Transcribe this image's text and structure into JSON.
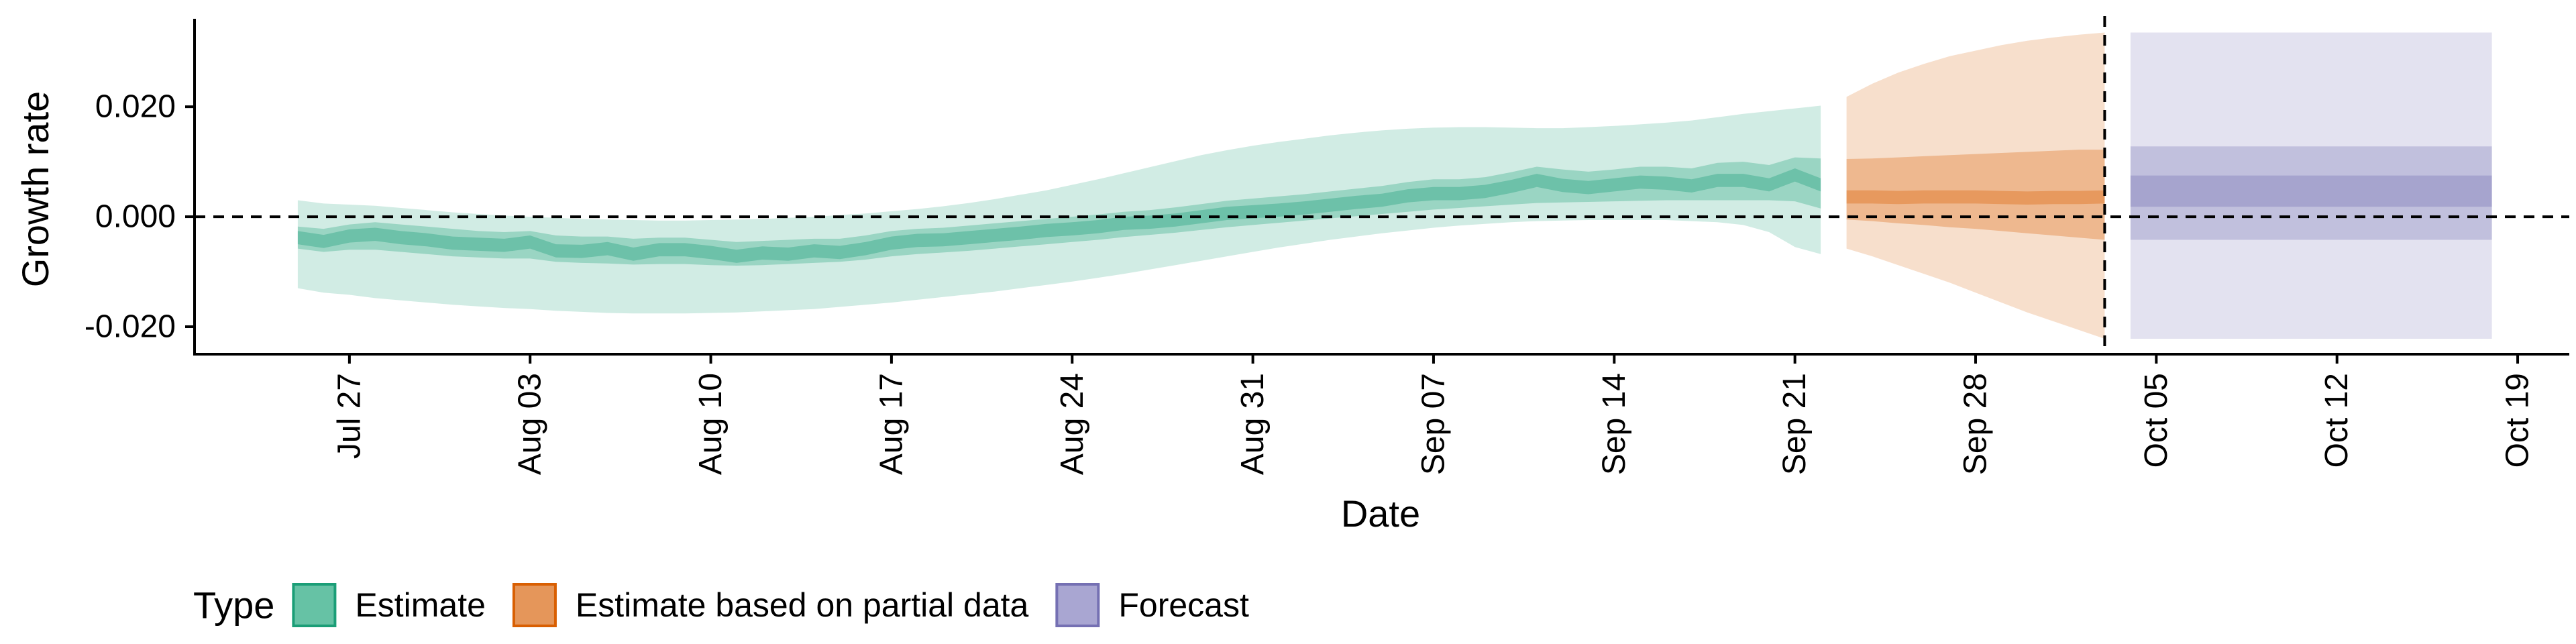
{
  "chart_data": {
    "type": "area",
    "xlabel": "Date",
    "ylabel": "Growth rate",
    "x_range": [
      "2020-07-21",
      "2020-10-21"
    ],
    "ylim": [
      -0.025,
      0.036
    ],
    "grid": false,
    "legend_position": "bottom-left",
    "reference_lines": {
      "horizontal_y": 0.0,
      "vertical_date": "2020-10-03"
    },
    "x_ticks": [
      {
        "date": "2020-07-27",
        "label": "Jul 27"
      },
      {
        "date": "2020-08-03",
        "label": "Aug 03"
      },
      {
        "date": "2020-08-10",
        "label": "Aug 10"
      },
      {
        "date": "2020-08-17",
        "label": "Aug 17"
      },
      {
        "date": "2020-08-24",
        "label": "Aug 24"
      },
      {
        "date": "2020-08-31",
        "label": "Aug 31"
      },
      {
        "date": "2020-09-07",
        "label": "Sep 07"
      },
      {
        "date": "2020-09-14",
        "label": "Sep 14"
      },
      {
        "date": "2020-09-21",
        "label": "Sep 21"
      },
      {
        "date": "2020-09-28",
        "label": "Sep 28"
      },
      {
        "date": "2020-10-05",
        "label": "Oct 05"
      },
      {
        "date": "2020-10-12",
        "label": "Oct 12"
      },
      {
        "date": "2020-10-19",
        "label": "Oct 19"
      }
    ],
    "y_ticks": [
      {
        "value": 0.02,
        "label": "0.020"
      },
      {
        "value": 0.0,
        "label": "0.000"
      },
      {
        "value": -0.02,
        "label": "-0.020"
      }
    ],
    "legend": {
      "title": "Type",
      "items": [
        {
          "label": "Estimate",
          "fill": "#66C2A5",
          "stroke": "#1B9E77"
        },
        {
          "label": "Estimate based on partial data",
          "fill": "#E5965A",
          "stroke": "#D95F02"
        },
        {
          "label": "Forecast",
          "fill": "#A9A6D2",
          "stroke": "#7570B3"
        }
      ]
    },
    "series": [
      {
        "name": "Estimate",
        "color": "#1B9E77",
        "x": [
          "2020-07-25",
          "2020-07-26",
          "2020-07-27",
          "2020-07-28",
          "2020-07-29",
          "2020-07-30",
          "2020-07-31",
          "2020-08-01",
          "2020-08-02",
          "2020-08-03",
          "2020-08-04",
          "2020-08-05",
          "2020-08-06",
          "2020-08-07",
          "2020-08-08",
          "2020-08-09",
          "2020-08-10",
          "2020-08-11",
          "2020-08-12",
          "2020-08-13",
          "2020-08-14",
          "2020-08-15",
          "2020-08-16",
          "2020-08-17",
          "2020-08-18",
          "2020-08-19",
          "2020-08-20",
          "2020-08-21",
          "2020-08-22",
          "2020-08-23",
          "2020-08-24",
          "2020-08-25",
          "2020-08-26",
          "2020-08-27",
          "2020-08-28",
          "2020-08-29",
          "2020-08-30",
          "2020-08-31",
          "2020-09-01",
          "2020-09-02",
          "2020-09-03",
          "2020-09-04",
          "2020-09-05",
          "2020-09-06",
          "2020-09-07",
          "2020-09-08",
          "2020-09-09",
          "2020-09-10",
          "2020-09-11",
          "2020-09-12",
          "2020-09-13",
          "2020-09-14",
          "2020-09-15",
          "2020-09-16",
          "2020-09-17",
          "2020-09-18",
          "2020-09-19",
          "2020-09-20",
          "2020-09-21",
          "2020-09-22"
        ],
        "median": [
          -0.0038,
          -0.0045,
          -0.0035,
          -0.0032,
          -0.0038,
          -0.0042,
          -0.0048,
          -0.005,
          -0.0052,
          -0.0046,
          -0.0062,
          -0.0063,
          -0.0058,
          -0.0068,
          -0.006,
          -0.006,
          -0.0065,
          -0.0072,
          -0.0066,
          -0.0068,
          -0.0062,
          -0.0065,
          -0.0058,
          -0.0048,
          -0.0043,
          -0.0042,
          -0.0038,
          -0.0034,
          -0.003,
          -0.0025,
          -0.0022,
          -0.0018,
          -0.0012,
          -0.001,
          -0.0006,
          0.0,
          0.0006,
          0.0009,
          0.0012,
          0.0016,
          0.0021,
          0.0026,
          0.003,
          0.0038,
          0.0042,
          0.0042,
          0.0046,
          0.0055,
          0.0066,
          0.0057,
          0.0053,
          0.0058,
          0.0063,
          0.0061,
          0.0056,
          0.0066,
          0.0066,
          0.0058,
          0.0076,
          0.0058
        ],
        "lower_50": [
          -0.0058,
          -0.0064,
          -0.006,
          -0.006,
          -0.0064,
          -0.0068,
          -0.0072,
          -0.0074,
          -0.0076,
          -0.0076,
          -0.0082,
          -0.0084,
          -0.0085,
          -0.0087,
          -0.0086,
          -0.0086,
          -0.0088,
          -0.0089,
          -0.0088,
          -0.0086,
          -0.0084,
          -0.0082,
          -0.0078,
          -0.0072,
          -0.0068,
          -0.0065,
          -0.0062,
          -0.0058,
          -0.0054,
          -0.005,
          -0.0046,
          -0.0042,
          -0.0037,
          -0.0033,
          -0.0029,
          -0.0024,
          -0.0019,
          -0.0015,
          -0.0011,
          -0.0007,
          -0.0003,
          0.0001,
          0.0005,
          0.0009,
          0.0013,
          0.0016,
          0.0019,
          0.0022,
          0.0025,
          0.0026,
          0.0027,
          0.0028,
          0.0029,
          0.003,
          0.003,
          0.003,
          0.003,
          0.003,
          0.0028,
          0.0015
        ],
        "upper_50": [
          -0.0018,
          -0.0022,
          -0.0014,
          -0.001,
          -0.0014,
          -0.0018,
          -0.0022,
          -0.0026,
          -0.0028,
          -0.0026,
          -0.0034,
          -0.0036,
          -0.0036,
          -0.004,
          -0.0038,
          -0.0038,
          -0.0042,
          -0.0046,
          -0.0044,
          -0.0042,
          -0.004,
          -0.004,
          -0.0034,
          -0.0026,
          -0.0022,
          -0.002,
          -0.0016,
          -0.0012,
          -0.0008,
          -0.0004,
          0.0,
          0.0004,
          0.0009,
          0.0012,
          0.0017,
          0.0023,
          0.0029,
          0.0033,
          0.0037,
          0.0041,
          0.0046,
          0.0051,
          0.0056,
          0.0063,
          0.0068,
          0.0068,
          0.0072,
          0.0081,
          0.0091,
          0.0086,
          0.0082,
          0.0086,
          0.0091,
          0.0091,
          0.0088,
          0.0098,
          0.01,
          0.0094,
          0.0108,
          0.0106
        ],
        "lower_90": [
          -0.013,
          -0.0138,
          -0.0142,
          -0.0148,
          -0.0152,
          -0.0156,
          -0.016,
          -0.0163,
          -0.0166,
          -0.0168,
          -0.0171,
          -0.0173,
          -0.0175,
          -0.0176,
          -0.0176,
          -0.0176,
          -0.0175,
          -0.0174,
          -0.0172,
          -0.017,
          -0.0168,
          -0.0164,
          -0.016,
          -0.0156,
          -0.0151,
          -0.0146,
          -0.0141,
          -0.0136,
          -0.013,
          -0.0124,
          -0.0118,
          -0.0111,
          -0.0104,
          -0.0096,
          -0.0088,
          -0.008,
          -0.0072,
          -0.0064,
          -0.0056,
          -0.0049,
          -0.0042,
          -0.0036,
          -0.003,
          -0.0025,
          -0.002,
          -0.0016,
          -0.0013,
          -0.001,
          -0.0008,
          -0.0007,
          -0.0006,
          -0.0006,
          -0.0006,
          -0.0006,
          -0.0008,
          -0.001,
          -0.0015,
          -0.0028,
          -0.0055,
          -0.0068
        ],
        "upper_90": [
          0.003,
          0.0024,
          0.0022,
          0.002,
          0.0016,
          0.0012,
          0.0008,
          0.0005,
          0.0002,
          0.0,
          -0.0002,
          -0.0004,
          -0.0005,
          -0.0006,
          -0.0007,
          -0.0007,
          -0.0006,
          -0.0005,
          -0.0004,
          -0.0002,
          0.0,
          0.0003,
          0.0006,
          0.001,
          0.0014,
          0.0019,
          0.0025,
          0.0032,
          0.004,
          0.0048,
          0.0058,
          0.0068,
          0.0079,
          0.009,
          0.0101,
          0.0112,
          0.0121,
          0.0129,
          0.0136,
          0.0142,
          0.0148,
          0.0153,
          0.0157,
          0.016,
          0.0162,
          0.0163,
          0.0163,
          0.0162,
          0.0161,
          0.0161,
          0.0163,
          0.0165,
          0.0168,
          0.0171,
          0.0175,
          0.0181,
          0.0187,
          0.0192,
          0.0197,
          0.0202
        ]
      },
      {
        "name": "Estimate based on partial data",
        "color": "#D95F02",
        "x": [
          "2020-09-23",
          "2020-09-24",
          "2020-09-25",
          "2020-09-26",
          "2020-09-27",
          "2020-09-28",
          "2020-09-29",
          "2020-09-30",
          "2020-10-01",
          "2020-10-02",
          "2020-10-03"
        ],
        "median": [
          0.0036,
          0.0036,
          0.0035,
          0.0036,
          0.0036,
          0.0036,
          0.0035,
          0.0034,
          0.0035,
          0.0035,
          0.0036
        ],
        "lower_50": [
          -0.0005,
          -0.0008,
          -0.0012,
          -0.0015,
          -0.0019,
          -0.0022,
          -0.0026,
          -0.003,
          -0.0034,
          -0.0038,
          -0.0042
        ],
        "upper_50": [
          0.0105,
          0.0106,
          0.0108,
          0.011,
          0.0112,
          0.0114,
          0.0116,
          0.0118,
          0.012,
          0.0122,
          0.0122
        ],
        "lower_90": [
          -0.0058,
          -0.0072,
          -0.0088,
          -0.0104,
          -0.012,
          -0.0138,
          -0.0156,
          -0.0174,
          -0.019,
          -0.0206,
          -0.0222
        ],
        "upper_90": [
          0.0218,
          0.0242,
          0.0262,
          0.0278,
          0.0292,
          0.0302,
          0.0312,
          0.032,
          0.0326,
          0.0331,
          0.0335
        ]
      },
      {
        "name": "Forecast",
        "color": "#7570B3",
        "x": [
          "2020-10-04",
          "2020-10-18"
        ],
        "median": [
          0.0045,
          0.0045
        ],
        "lower_50": [
          0.0018,
          0.0018
        ],
        "upper_50": [
          0.0075,
          0.0075
        ],
        "lower_20": [
          -0.0042,
          -0.0042
        ],
        "upper_20": [
          0.0128,
          0.0128
        ],
        "lower_90": [
          -0.0222,
          -0.0222
        ],
        "upper_90": [
          0.0335,
          0.0335
        ]
      }
    ]
  }
}
